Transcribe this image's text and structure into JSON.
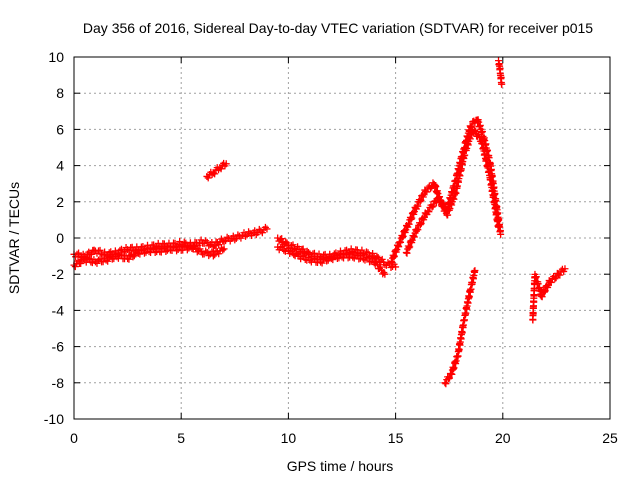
{
  "chart_data": {
    "type": "scatter",
    "title": "Day 356 of 2016, Sidereal Day-to-day VTEC variation (SDTVAR) for receiver p015",
    "xlabel": "GPS time / hours",
    "ylabel": "SDTVAR / TECUs",
    "xlim": [
      0,
      25
    ],
    "ylim": [
      -10,
      10
    ],
    "xticks": [
      0,
      5,
      10,
      15,
      20,
      25
    ],
    "yticks": [
      -10,
      -8,
      -6,
      -4,
      -2,
      0,
      2,
      4,
      6,
      8,
      10
    ],
    "grid": true,
    "marker": "plus",
    "color": "#ff0000",
    "series": [
      {
        "segments": [
          {
            "x": [
              0.0,
              0.5,
              1.0,
              1.5,
              2.0,
              2.5,
              3.0,
              3.5,
              4.0,
              4.5,
              5.0,
              5.5,
              6.0,
              6.5,
              7.0,
              7.5,
              8.0,
              8.5,
              9.0
            ],
            "y": [
              -0.9,
              -1.0,
              -0.7,
              -0.9,
              -0.8,
              -0.6,
              -0.6,
              -0.5,
              -0.4,
              -0.4,
              -0.3,
              -0.4,
              -0.2,
              -0.4,
              -0.1,
              0.0,
              0.2,
              0.3,
              0.5
            ]
          },
          {
            "x": [
              0.0,
              0.5,
              1.0,
              1.5,
              2.0,
              2.5,
              3.0,
              3.5,
              4.0,
              4.5,
              5.0,
              5.5,
              6.0,
              6.5,
              7.0
            ],
            "y": [
              -1.5,
              -1.2,
              -1.3,
              -1.2,
              -1.0,
              -1.1,
              -0.8,
              -0.7,
              -0.7,
              -0.6,
              -0.6,
              -0.5,
              -0.8,
              -0.9,
              -0.6
            ]
          },
          {
            "x": [
              6.2,
              6.5,
              6.8,
              7.1
            ],
            "y": [
              3.4,
              3.6,
              3.9,
              4.1
            ]
          },
          {
            "x": [
              9.5,
              10.0,
              10.5,
              11.0,
              11.5,
              12.0,
              12.5,
              13.0,
              13.5,
              14.0,
              14.5,
              15.0
            ],
            "y": [
              0.0,
              -0.4,
              -0.6,
              -0.9,
              -1.0,
              -1.0,
              -0.8,
              -0.7,
              -0.8,
              -1.0,
              -1.4,
              -1.6
            ]
          },
          {
            "x": [
              9.5,
              10.0,
              10.5,
              11.0,
              11.5,
              12.0,
              12.5,
              13.0,
              13.5,
              14.0,
              14.5
            ],
            "y": [
              -0.5,
              -0.7,
              -1.0,
              -1.2,
              -1.3,
              -1.1,
              -1.0,
              -1.0,
              -1.1,
              -1.3,
              -2.0
            ]
          },
          {
            "x": [
              14.8,
              15.2,
              15.6,
              16.0,
              16.4,
              16.8,
              17.1,
              17.4,
              17.8,
              18.2,
              18.5,
              18.8,
              19.1,
              19.4,
              19.7,
              19.9
            ],
            "y": [
              -1.3,
              -0.2,
              0.8,
              1.8,
              2.6,
              3.0,
              2.0,
              1.6,
              3.2,
              5.0,
              6.2,
              6.6,
              5.6,
              4.2,
              1.8,
              0.2
            ]
          },
          {
            "x": [
              15.5,
              16.0,
              16.5,
              17.0,
              17.4,
              17.8,
              18.2,
              18.6,
              19.0,
              19.4,
              19.8
            ],
            "y": [
              -0.8,
              0.5,
              1.5,
              2.2,
              1.3,
              2.5,
              4.6,
              6.0,
              5.4,
              3.4,
              0.6
            ]
          },
          {
            "x": [
              19.8,
              19.85,
              19.9,
              19.95
            ],
            "y": [
              9.8,
              9.5,
              9.0,
              8.5
            ]
          },
          {
            "x": [
              17.3,
              17.6,
              17.9,
              18.2,
              18.5,
              18.7
            ],
            "y": [
              -8.0,
              -7.5,
              -6.5,
              -4.5,
              -2.8,
              -1.8
            ]
          },
          {
            "x": [
              21.4,
              21.5,
              21.8,
              22.2,
              22.6,
              22.9
            ],
            "y": [
              -4.5,
              -2.0,
              -3.2,
              -2.4,
              -2.0,
              -1.7
            ]
          }
        ]
      }
    ]
  }
}
